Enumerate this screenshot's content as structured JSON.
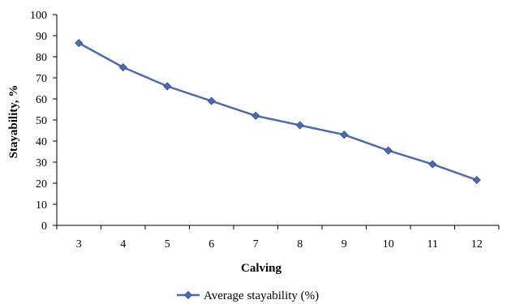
{
  "chart_data": {
    "type": "line",
    "x": [
      3,
      4,
      5,
      6,
      7,
      8,
      9,
      10,
      11,
      12
    ],
    "series": [
      {
        "name": "Average stayability (%)",
        "values": [
          86.5,
          75,
          66,
          59,
          52,
          47.5,
          43,
          35.5,
          29,
          21.5
        ],
        "color": "#4f6bb0"
      }
    ],
    "xlabel": "Calving",
    "ylabel": "Stayability,  %",
    "ylim": [
      0,
      100
    ],
    "yticks": [
      0,
      10,
      20,
      30,
      40,
      50,
      60,
      70,
      80,
      90,
      100
    ],
    "xticks": [
      "3",
      "4",
      "5",
      "6",
      "7",
      "8",
      "9",
      "10",
      "11",
      "12"
    ],
    "marker": "diamond",
    "grid": false,
    "legend_position": "bottom"
  }
}
